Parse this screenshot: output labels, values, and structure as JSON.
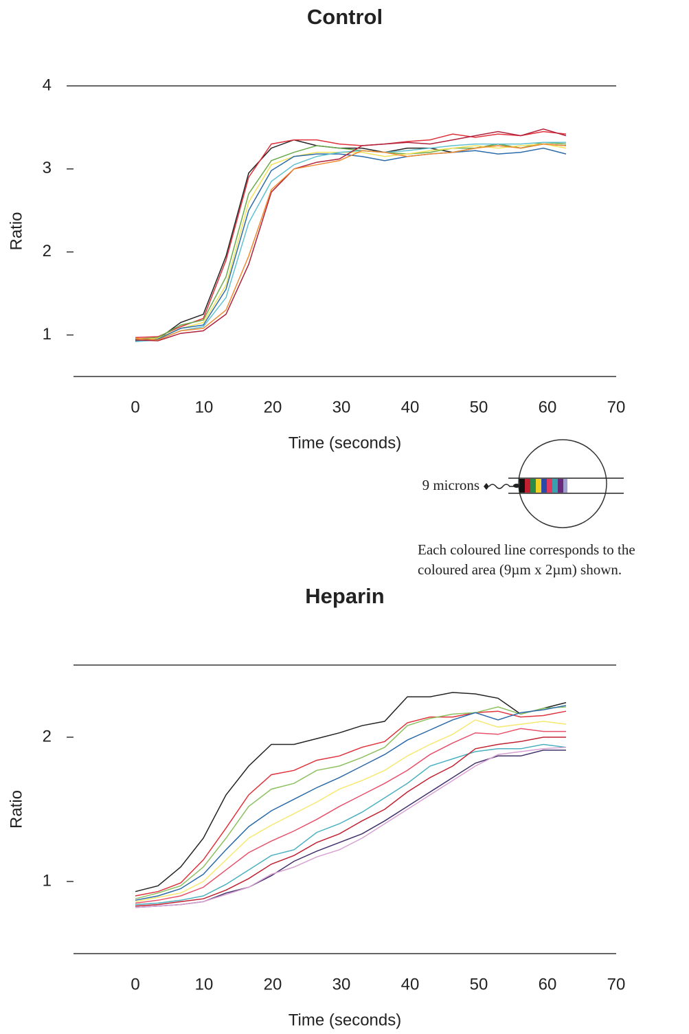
{
  "chart_data": [
    {
      "type": "line",
      "title": "Control",
      "x_label": "Time (seconds)",
      "y_label": "Ratio",
      "x": [
        0,
        3.3,
        6.6,
        9.9,
        13.2,
        16.5,
        19.8,
        23.1,
        26.4,
        29.7,
        33,
        36.3,
        39.6,
        42.9,
        46.2,
        49.5,
        52.8,
        56.1,
        59.4,
        62.7
      ],
      "xlim": [
        -9,
        70
      ],
      "xticks": [
        0,
        10,
        20,
        30,
        40,
        50,
        60,
        70
      ],
      "ylim": [
        0.5,
        4
      ],
      "yticks": [
        1,
        2,
        3,
        4
      ],
      "series": [
        {
          "color": "#222222",
          "values": [
            0.93,
            0.95,
            1.15,
            1.25,
            1.95,
            2.95,
            3.25,
            3.35,
            3.28,
            3.25,
            3.25,
            3.2,
            3.25,
            3.25,
            3.2,
            3.25,
            3.3,
            3.25,
            3.3,
            3.28
          ]
        },
        {
          "color": "#e0303a",
          "values": [
            0.97,
            0.98,
            1.1,
            1.2,
            1.9,
            2.9,
            3.3,
            3.35,
            3.35,
            3.3,
            3.28,
            3.3,
            3.33,
            3.35,
            3.42,
            3.38,
            3.42,
            3.4,
            3.45,
            3.42
          ]
        },
        {
          "color": "#6aaa4a",
          "values": [
            0.95,
            0.97,
            1.12,
            1.18,
            1.7,
            2.7,
            3.1,
            3.2,
            3.28,
            3.25,
            3.22,
            3.2,
            3.18,
            3.2,
            3.25,
            3.25,
            3.3,
            3.25,
            3.32,
            3.3
          ]
        },
        {
          "color": "#f2e25a",
          "values": [
            0.94,
            0.96,
            1.08,
            1.15,
            1.6,
            2.6,
            3.05,
            3.15,
            3.2,
            3.2,
            3.2,
            3.15,
            3.18,
            3.22,
            3.25,
            3.28,
            3.25,
            3.28,
            3.3,
            3.25
          ]
        },
        {
          "color": "#2a6aa8",
          "values": [
            0.93,
            0.95,
            1.08,
            1.12,
            1.55,
            2.5,
            2.98,
            3.15,
            3.18,
            3.18,
            3.15,
            3.1,
            3.15,
            3.18,
            3.2,
            3.22,
            3.18,
            3.2,
            3.25,
            3.18
          ]
        },
        {
          "color": "#5fc0d0",
          "values": [
            0.92,
            0.94,
            1.05,
            1.1,
            1.45,
            2.35,
            2.85,
            3.05,
            3.15,
            3.2,
            3.22,
            3.2,
            3.22,
            3.25,
            3.28,
            3.3,
            3.3,
            3.3,
            3.32,
            3.32
          ]
        },
        {
          "color": "#b0203a",
          "values": [
            0.94,
            0.93,
            1.02,
            1.05,
            1.25,
            1.85,
            2.72,
            3.0,
            3.08,
            3.12,
            3.28,
            3.3,
            3.32,
            3.3,
            3.35,
            3.4,
            3.45,
            3.4,
            3.48,
            3.4
          ]
        },
        {
          "color": "#f08a30",
          "values": [
            0.96,
            0.94,
            1.05,
            1.08,
            1.3,
            1.95,
            2.75,
            3.0,
            3.05,
            3.1,
            3.22,
            3.2,
            3.15,
            3.18,
            3.2,
            3.25,
            3.28,
            3.25,
            3.3,
            3.28
          ]
        }
      ]
    },
    {
      "type": "line",
      "title": "Heparin",
      "x_label": "Time (seconds)",
      "y_label": "Ratio",
      "x": [
        0,
        3.3,
        6.6,
        9.9,
        13.2,
        16.5,
        19.8,
        23.1,
        26.4,
        29.7,
        33,
        36.3,
        39.6,
        42.9,
        46.2,
        49.5,
        52.8,
        56.1,
        59.4,
        62.7
      ],
      "xlim": [
        -9,
        70
      ],
      "xticks": [
        0,
        10,
        20,
        30,
        40,
        50,
        60,
        70
      ],
      "ylim": [
        0.5,
        2.5
      ],
      "yticks": [
        1,
        2
      ],
      "series": [
        {
          "color": "#222222",
          "values": [
            0.93,
            0.97,
            1.1,
            1.3,
            1.6,
            1.8,
            1.95,
            1.95,
            1.99,
            2.03,
            2.08,
            2.11,
            2.28,
            2.28,
            2.31,
            2.3,
            2.27,
            2.16,
            2.2,
            2.24
          ]
        },
        {
          "color": "#e0303a",
          "values": [
            0.9,
            0.93,
            0.99,
            1.15,
            1.37,
            1.6,
            1.74,
            1.77,
            1.84,
            1.87,
            1.93,
            1.97,
            2.1,
            2.14,
            2.14,
            2.17,
            2.18,
            2.14,
            2.15,
            2.18
          ]
        },
        {
          "color": "#8cc060",
          "values": [
            0.88,
            0.92,
            0.97,
            1.1,
            1.3,
            1.52,
            1.64,
            1.68,
            1.77,
            1.8,
            1.86,
            1.93,
            2.08,
            2.13,
            2.16,
            2.17,
            2.21,
            2.16,
            2.2,
            2.21
          ]
        },
        {
          "color": "#2a6aa8",
          "values": [
            0.87,
            0.9,
            0.95,
            1.05,
            1.22,
            1.38,
            1.49,
            1.57,
            1.65,
            1.72,
            1.8,
            1.88,
            1.98,
            2.05,
            2.12,
            2.17,
            2.12,
            2.17,
            2.19,
            2.22
          ]
        },
        {
          "color": "#f6e870",
          "values": [
            0.86,
            0.89,
            0.92,
            1.0,
            1.15,
            1.3,
            1.39,
            1.47,
            1.55,
            1.64,
            1.7,
            1.77,
            1.87,
            1.95,
            2.02,
            2.12,
            2.07,
            2.09,
            2.11,
            2.09
          ]
        },
        {
          "color": "#e8506a",
          "values": [
            0.85,
            0.87,
            0.9,
            0.96,
            1.08,
            1.2,
            1.28,
            1.35,
            1.43,
            1.52,
            1.6,
            1.68,
            1.77,
            1.88,
            1.96,
            2.03,
            2.02,
            2.06,
            2.04,
            2.04
          ]
        },
        {
          "color": "#4ab0c0",
          "values": [
            0.84,
            0.85,
            0.87,
            0.9,
            0.98,
            1.08,
            1.18,
            1.22,
            1.34,
            1.4,
            1.48,
            1.58,
            1.68,
            1.8,
            1.85,
            1.9,
            1.92,
            1.92,
            1.95,
            1.93
          ]
        },
        {
          "color": "#c02030",
          "values": [
            0.83,
            0.84,
            0.86,
            0.88,
            0.94,
            1.02,
            1.12,
            1.18,
            1.27,
            1.33,
            1.42,
            1.5,
            1.62,
            1.72,
            1.8,
            1.92,
            1.95,
            1.97,
            2.0,
            2.0
          ]
        },
        {
          "color": "#40306a",
          "values": [
            0.82,
            0.83,
            0.84,
            0.86,
            0.92,
            0.96,
            1.04,
            1.14,
            1.21,
            1.27,
            1.33,
            1.42,
            1.52,
            1.62,
            1.72,
            1.82,
            1.87,
            1.87,
            1.91,
            1.91
          ]
        },
        {
          "color": "#d8a0d0",
          "values": [
            0.82,
            0.83,
            0.84,
            0.86,
            0.91,
            0.96,
            1.05,
            1.1,
            1.17,
            1.22,
            1.3,
            1.4,
            1.5,
            1.6,
            1.7,
            1.8,
            1.88,
            1.9,
            1.92,
            1.93
          ]
        }
      ]
    }
  ],
  "inset": {
    "label": "9 microns",
    "caption": [
      "Each coloured line corresponds to the",
      "coloured area (9µm x 2µm) shown."
    ]
  }
}
